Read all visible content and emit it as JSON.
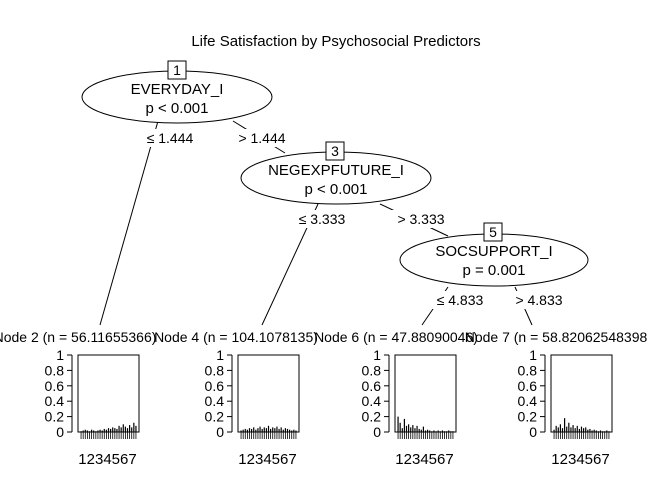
{
  "title": "Life Satisfaction by Psychosocial Predictors",
  "inner_nodes": [
    {
      "id": "1",
      "variable": "EVERYDAY_I",
      "pvalue": "p < 0.001",
      "left_edge": "≤ 1.444",
      "right_edge": "> 1.444"
    },
    {
      "id": "3",
      "variable": "NEGEXPFUTURE_I",
      "pvalue": "p < 0.001",
      "left_edge": "≤ 3.333",
      "right_edge": "> 3.333"
    },
    {
      "id": "5",
      "variable": "SOCSUPPORT_I",
      "pvalue": "p = 0.001",
      "left_edge": "≤ 4.833",
      "right_edge": "> 4.833"
    }
  ],
  "terminal_nodes": [
    {
      "label": "Node 2 (n = 56.11655366)",
      "xticks": "1234567"
    },
    {
      "label": "Node 4 (n = 104.1078135)",
      "xticks": "1234567"
    },
    {
      "label": "Node 6 (n = 47.88090046)",
      "xticks": "1234567"
    },
    {
      "label": "Node 7 (n = 58.82062548398",
      "xticks": "1234567"
    }
  ],
  "y_ticks": [
    "1",
    "0.8",
    "0.6",
    "0.4",
    "0.2",
    "0"
  ],
  "chart_data": [
    {
      "type": "bar",
      "title": "Node 2 (n = 56.11655366)",
      "ylim": [
        0,
        1
      ],
      "values": [
        0.01,
        0.02,
        0.03,
        0.02,
        0.01,
        0.03,
        0.02,
        0.01,
        0.02,
        0.03,
        0.02,
        0.04,
        0.03,
        0.05,
        0.04,
        0.06,
        0.05,
        0.04,
        0.08,
        0.06,
        0.1,
        0.07,
        0.05,
        0.09,
        0.06,
        0.12,
        0.08
      ]
    },
    {
      "type": "bar",
      "title": "Node 4 (n = 104.1078135)",
      "ylim": [
        0,
        1
      ],
      "values": [
        0.02,
        0.03,
        0.04,
        0.03,
        0.05,
        0.04,
        0.06,
        0.03,
        0.05,
        0.07,
        0.04,
        0.06,
        0.05,
        0.08,
        0.04,
        0.06,
        0.05,
        0.07,
        0.04,
        0.06,
        0.03,
        0.05,
        0.04,
        0.03,
        0.02,
        0.03,
        0.02
      ]
    },
    {
      "type": "bar",
      "title": "Node 6 (n = 47.88090046)",
      "ylim": [
        0,
        1
      ],
      "values": [
        0.2,
        0.12,
        0.05,
        0.17,
        0.08,
        0.1,
        0.06,
        0.09,
        0.05,
        0.08,
        0.04,
        0.03,
        0.07,
        0.02,
        0.03,
        0.02,
        0.01,
        0.02,
        0.01,
        0.02,
        0.01,
        0.02,
        0.01,
        0.01,
        0.02,
        0.01,
        0.01
      ]
    },
    {
      "type": "bar",
      "title": "Node 7 (n = 58.82062548398",
      "ylim": [
        0,
        1
      ],
      "values": [
        0.03,
        0.08,
        0.06,
        0.1,
        0.05,
        0.18,
        0.07,
        0.12,
        0.06,
        0.09,
        0.05,
        0.08,
        0.04,
        0.07,
        0.05,
        0.06,
        0.03,
        0.04,
        0.02,
        0.03,
        0.02,
        0.01,
        0.02,
        0.01,
        0.01,
        0.02,
        0.01
      ]
    }
  ]
}
